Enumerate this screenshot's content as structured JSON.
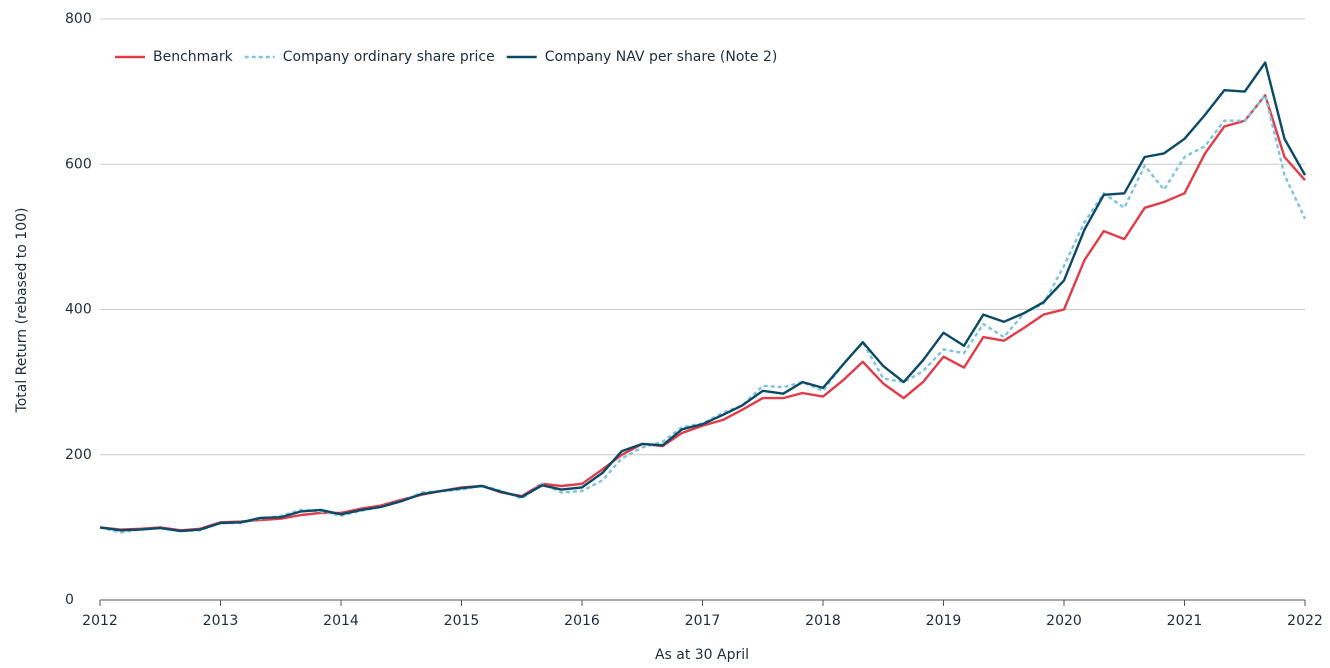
{
  "chart_data": {
    "type": "line",
    "ylabel": "Total Return (rebased to 100)",
    "xlabel": "As at 30 April",
    "x": [
      2012,
      2012.17,
      2012.33,
      2012.5,
      2012.67,
      2012.83,
      2013,
      2013.17,
      2013.33,
      2013.5,
      2013.67,
      2013.83,
      2014,
      2014.17,
      2014.33,
      2014.5,
      2014.67,
      2014.83,
      2015,
      2015.17,
      2015.33,
      2015.5,
      2015.67,
      2015.83,
      2016,
      2016.17,
      2016.33,
      2016.5,
      2016.67,
      2016.83,
      2017,
      2017.17,
      2017.33,
      2017.5,
      2017.67,
      2017.83,
      2018,
      2018.17,
      2018.33,
      2018.5,
      2018.67,
      2018.83,
      2019,
      2019.17,
      2019.33,
      2019.5,
      2019.67,
      2019.83,
      2020,
      2020.17,
      2020.33,
      2020.5,
      2020.67,
      2020.83,
      2021,
      2021.17,
      2021.33,
      2021.5,
      2021.67,
      2021.83,
      2022
    ],
    "series": [
      {
        "name": "Benchmark",
        "color": "#e03c4a",
        "style": "solid",
        "values": [
          100,
          97,
          98,
          100,
          96,
          98,
          107,
          108,
          110,
          112,
          117,
          120,
          120,
          126,
          130,
          138,
          145,
          150,
          155,
          157,
          148,
          143,
          160,
          157,
          160,
          180,
          200,
          215,
          212,
          230,
          240,
          248,
          262,
          278,
          278,
          285,
          280,
          303,
          328,
          298,
          278,
          300,
          335,
          320,
          362,
          357,
          375,
          393,
          400,
          468,
          508,
          497,
          540,
          548,
          560,
          615,
          652,
          660,
          695,
          610,
          578
        ]
      },
      {
        "name": "Company ordinary share price",
        "color": "#7fc4dc",
        "style": "dashed",
        "values": [
          100,
          93,
          97,
          99,
          95,
          96,
          106,
          106,
          112,
          116,
          124,
          122,
          116,
          123,
          128,
          136,
          148,
          150,
          152,
          158,
          150,
          140,
          160,
          148,
          150,
          165,
          195,
          210,
          218,
          238,
          243,
          258,
          268,
          295,
          293,
          300,
          288,
          325,
          355,
          305,
          300,
          315,
          345,
          340,
          380,
          362,
          395,
          408,
          460,
          520,
          560,
          540,
          598,
          565,
          610,
          625,
          660,
          660,
          695,
          585,
          525
        ]
      },
      {
        "name": "Company NAV per share (Note 2)",
        "color": "#0b4a66",
        "style": "solid",
        "values": [
          100,
          96,
          97,
          99,
          95,
          97,
          106,
          107,
          113,
          114,
          122,
          124,
          118,
          124,
          128,
          136,
          146,
          150,
          154,
          157,
          149,
          142,
          158,
          152,
          155,
          175,
          205,
          215,
          213,
          235,
          242,
          255,
          268,
          288,
          284,
          300,
          292,
          325,
          355,
          322,
          300,
          330,
          368,
          350,
          393,
          383,
          395,
          410,
          440,
          510,
          558,
          560,
          610,
          615,
          635,
          668,
          702,
          700,
          740,
          635,
          585
        ]
      }
    ],
    "xlim": [
      2012,
      2022
    ],
    "xticks": [
      2012,
      2013,
      2014,
      2015,
      2016,
      2017,
      2018,
      2019,
      2020,
      2021,
      2022
    ],
    "ylim": [
      0,
      800
    ],
    "yticks": [
      0,
      200,
      400,
      600,
      800
    ],
    "grid": true,
    "legend": "top-left"
  }
}
